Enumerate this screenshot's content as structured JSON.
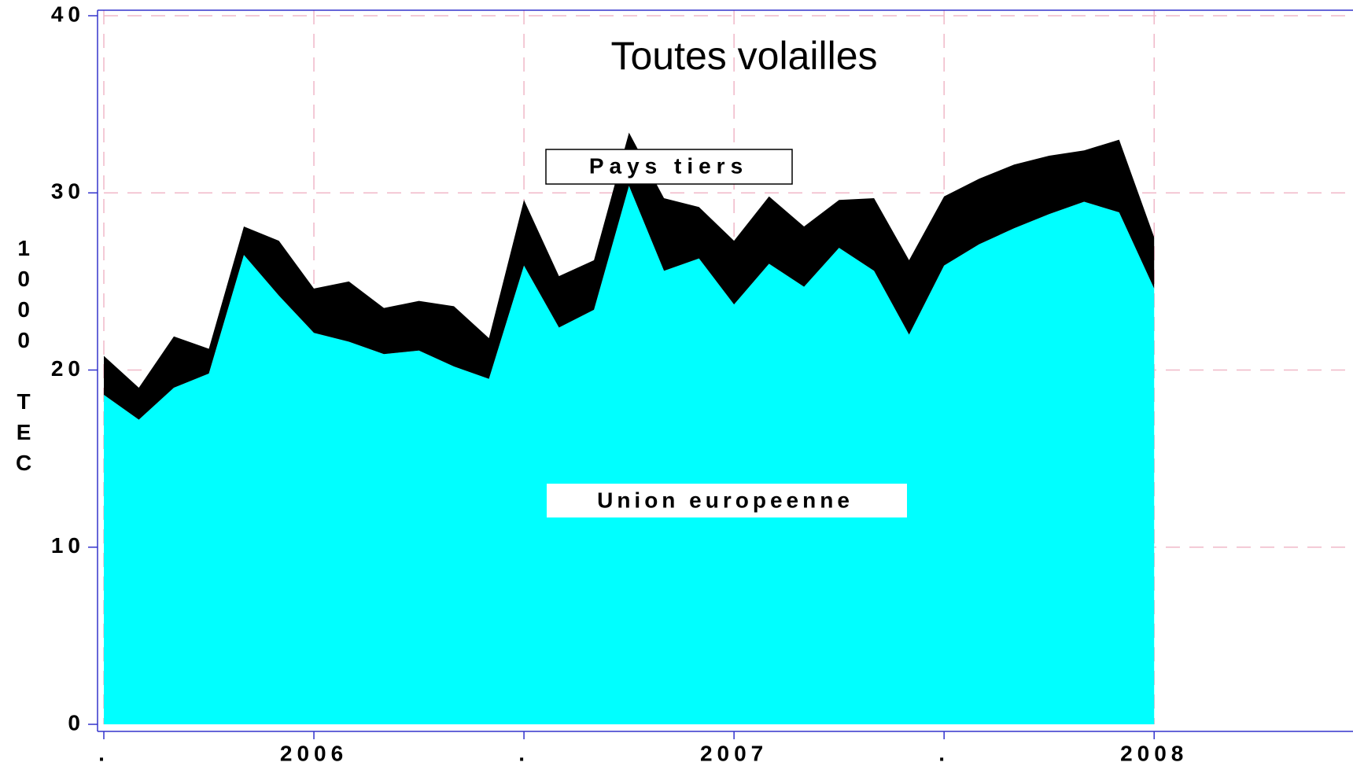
{
  "chart_data": {
    "type": "stacked_area",
    "title": "Toutes volailles",
    "ylabel": "1000 TEC",
    "x": [
      0,
      1,
      2,
      3,
      4,
      5,
      6,
      7,
      8,
      9,
      10,
      11,
      12,
      13,
      14,
      15,
      16,
      17,
      18,
      19,
      20,
      21,
      22,
      23,
      24,
      25,
      26,
      27,
      28,
      29,
      30
    ],
    "series": [
      {
        "name": "Union europeenne",
        "color": "#00ffff",
        "values": [
          18.6,
          17.2,
          19.0,
          19.8,
          26.5,
          24.2,
          22.1,
          21.6,
          20.9,
          21.1,
          20.2,
          19.5,
          25.9,
          22.4,
          23.4,
          30.4,
          25.6,
          26.3,
          23.7,
          26.0,
          24.7,
          26.9,
          25.6,
          22.0,
          25.9,
          27.1,
          28.0,
          28.8,
          29.5,
          28.9,
          24.6
        ]
      },
      {
        "name": "Pays tiers",
        "color": "#000000",
        "values": [
          2.2,
          1.8,
          2.9,
          1.4,
          1.6,
          3.1,
          2.5,
          3.4,
          2.6,
          2.8,
          3.4,
          2.3,
          3.7,
          2.9,
          2.8,
          3.0,
          4.1,
          2.9,
          3.6,
          3.8,
          3.4,
          2.7,
          4.1,
          4.2,
          3.9,
          3.7,
          3.6,
          3.3,
          2.9,
          4.1,
          2.9
        ]
      }
    ],
    "xlim": [
      0,
      35.5
    ],
    "xticks": [
      {
        "value": 0,
        "label": "."
      },
      {
        "value": 6,
        "label": "2006"
      },
      {
        "value": 12,
        "label": "."
      },
      {
        "value": 18,
        "label": "2007"
      },
      {
        "value": 24,
        "label": "."
      },
      {
        "value": 30,
        "label": "2008"
      }
    ],
    "ylim": [
      0,
      40
    ],
    "yticks": [
      0,
      10,
      20,
      30,
      40
    ],
    "grid": true
  }
}
